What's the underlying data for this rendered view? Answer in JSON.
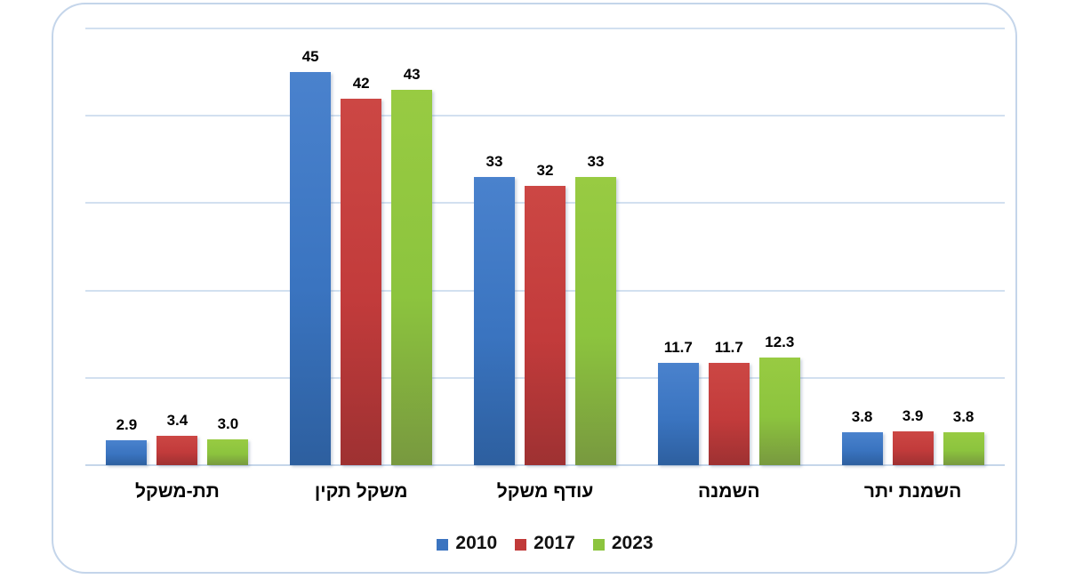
{
  "chart_data": {
    "type": "bar",
    "title": "",
    "xlabel": "",
    "ylabel": "",
    "categories": [
      "תת-משקל",
      "משקל תקין",
      "עודף משקל",
      "השמנה",
      "השמנת יתר"
    ],
    "series": [
      {
        "name": "2010",
        "values": [
          2.9,
          45,
          33,
          11.7,
          3.8
        ],
        "labels": [
          "2.9",
          "45",
          "33",
          "11.7",
          "3.8"
        ],
        "swatch_color": "#3b74c0",
        "gradient": [
          "#4a82cd",
          "#3a74c0",
          "#2d5f9f"
        ]
      },
      {
        "name": "2017",
        "values": [
          3.4,
          42,
          32,
          11.7,
          3.9
        ],
        "labels": [
          "3.4",
          "42",
          "32",
          "11.7",
          "3.9"
        ],
        "swatch_color": "#c13a39",
        "gradient": [
          "#cc4744",
          "#c23b3b",
          "#9e3132"
        ]
      },
      {
        "name": "2023",
        "values": [
          3.0,
          43,
          33,
          12.3,
          3.8
        ],
        "labels": [
          "3.0",
          "43",
          "33",
          "12.3",
          "3.8"
        ],
        "swatch_color": "#8cc43e",
        "gradient": [
          "#98cb42",
          "#8cc43e",
          "#78993f"
        ]
      }
    ],
    "ylim": [
      0,
      50
    ],
    "gridline_step": 10,
    "grid": "horizontal",
    "y_axis_labels_visible": false,
    "legend_position": "bottom",
    "colors": {
      "frame_border": "#c4d5ea",
      "gridline": "#d2e0f0",
      "baseline": "#c6d6ea",
      "label_text": "#000000"
    }
  }
}
